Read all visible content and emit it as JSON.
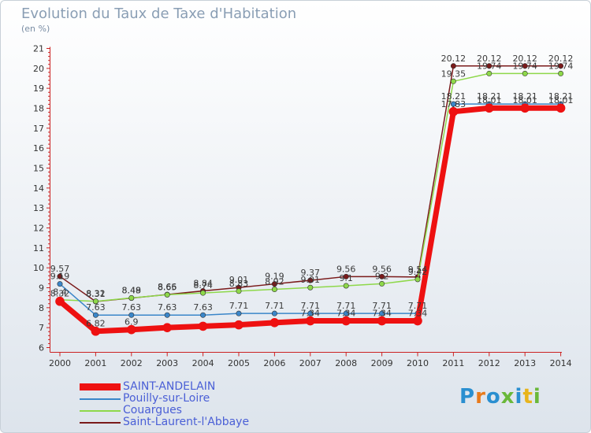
{
  "chart_data": {
    "type": "line",
    "title": "Evolution du Taux de Taxe d'Habitation",
    "subtitle": "(en %)",
    "xlabel": "",
    "ylabel": "",
    "categories": [
      "2000",
      "2001",
      "2002",
      "2003",
      "2004",
      "2005",
      "2006",
      "2007",
      "2008",
      "2009",
      "2010",
      "2011",
      "2012",
      "2013",
      "2014"
    ],
    "ylim": [
      6,
      21
    ],
    "yticks": [
      "6",
      "7",
      "8",
      "9",
      "10",
      "11",
      "12",
      "13",
      "14",
      "15",
      "16",
      "17",
      "18",
      "19",
      "20",
      "21"
    ],
    "grid": false,
    "legend_position": "bottom-left",
    "series": [
      {
        "name": "SAINT-ANDELAIN",
        "color": "#ee1111",
        "values": [
          8.32,
          6.82,
          6.9,
          7.0,
          7.07,
          7.14,
          7.25,
          7.34,
          7.34,
          7.34,
          7.34,
          17.83,
          18.01,
          18.01,
          18.01
        ],
        "labels": [
          "8.32",
          "6.82",
          "6.9",
          "",
          "",
          "",
          "",
          "7.34",
          "7.34",
          "7.34",
          "7.34",
          "17.83",
          "18.01",
          "18.01",
          "18.01"
        ]
      },
      {
        "name": "Pouilly-sur-Loire",
        "color": "#3a86c9",
        "values": [
          9.19,
          7.63,
          7.63,
          7.63,
          7.63,
          7.71,
          7.71,
          7.71,
          7.71,
          7.71,
          7.71,
          18.21,
          18.21,
          18.21,
          18.21
        ],
        "labels": [
          "9.19",
          "7.63",
          "7.63",
          "7.63",
          "7.63",
          "7.71",
          "7.71",
          "7.71",
          "7.71",
          "7.71",
          "7.71",
          "18.21",
          "18.21",
          "18.21",
          "18.21"
        ]
      },
      {
        "name": "Couargues",
        "color": "#8ed84a",
        "values": [
          8.4,
          8.32,
          8.49,
          8.65,
          8.74,
          8.83,
          8.92,
          9.01,
          9.1,
          9.2,
          9.42,
          19.35,
          19.74,
          19.74,
          19.74
        ],
        "labels": [
          "8.4",
          "8.32",
          "8.49",
          "8.65",
          "8.74",
          "8.83",
          "8.92",
          "9.01",
          "9.1",
          "9.2",
          "9.42",
          "19.35",
          "19.74",
          "19.74",
          "19.74"
        ]
      },
      {
        "name": "Saint-Laurent-l'Abbaye",
        "color": "#7a1a1a",
        "values": [
          9.57,
          8.31,
          8.48,
          8.66,
          8.84,
          9.01,
          9.19,
          9.37,
          9.56,
          9.56,
          9.54,
          20.12,
          20.12,
          20.12,
          20.12
        ],
        "labels": [
          "9.57",
          "8.31",
          "8.48",
          "8.66",
          "8.84",
          "9.01",
          "9.19",
          "9.37",
          "9.56",
          "9.56",
          "9.54",
          "20.12",
          "20.12",
          "20.12",
          "20.12"
        ]
      }
    ]
  },
  "logo": {
    "text": "Proxiti",
    "colors": [
      "#2a8fd0",
      "#e87a1c",
      "#2a8fd0",
      "#6ab83a",
      "#2a8fd0",
      "#e8b41c",
      "#6ab83a"
    ]
  }
}
